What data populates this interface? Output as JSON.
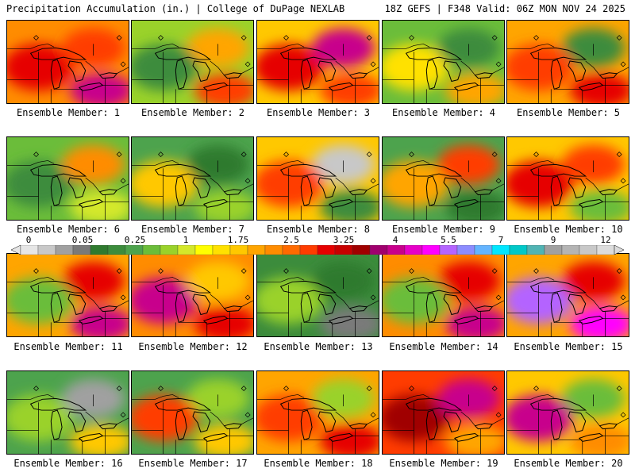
{
  "header": {
    "title": "Precipitation Accumulation (in.) | College of DuPage NEXLAB",
    "run_info": "18Z GEFS | F348 Valid: 06Z MON NOV 24 2025"
  },
  "colorbar": {
    "tick_labels": [
      "0",
      "0.05",
      "0.25",
      "1",
      "1.75",
      "2.5",
      "3.25",
      "4",
      "5.5",
      "7",
      "9",
      "12"
    ],
    "colors": [
      "#e6e6e6",
      "#c8c8c8",
      "#a0a0a0",
      "#7a7a7a",
      "#2f7a2f",
      "#3c8c3c",
      "#4da34d",
      "#6bbd3a",
      "#9ad22a",
      "#d4e82a",
      "#ffff00",
      "#ffe100",
      "#ffc800",
      "#ffa500",
      "#ff8c00",
      "#ff6a00",
      "#ff3c00",
      "#e60000",
      "#c80000",
      "#a00000",
      "#a0006e",
      "#c8008c",
      "#e600c8",
      "#ff00ff",
      "#b464ff",
      "#8c8cff",
      "#64b4ff",
      "#00e6ff",
      "#00c8c8",
      "#50b4b4",
      "#a0a0a0",
      "#b4b4b4",
      "#c8c8c8",
      "#dcdcdc"
    ]
  },
  "members": [
    {
      "label": "Ensemble Member: 1",
      "base": "#ff8c00",
      "blobs": [
        "#e60000",
        "#ff3c00",
        "#c8008c"
      ]
    },
    {
      "label": "Ensemble Member: 2",
      "base": "#9ad22a",
      "blobs": [
        "#ffa500",
        "#ff3c00",
        "#3c8c3c"
      ]
    },
    {
      "label": "Ensemble Member: 3",
      "base": "#ffc800",
      "blobs": [
        "#ff3c00",
        "#e60000",
        "#c8008c"
      ]
    },
    {
      "label": "Ensemble Member: 4",
      "base": "#6bbd3a",
      "blobs": [
        "#ffe100",
        "#3c8c3c",
        "#ffa500"
      ]
    },
    {
      "label": "Ensemble Member: 5",
      "base": "#ffa500",
      "blobs": [
        "#3c8c3c",
        "#e60000",
        "#ff3c00"
      ]
    },
    {
      "label": "Ensemble Member: 6",
      "base": "#6bbd3a",
      "blobs": [
        "#d4e82a",
        "#3c8c3c",
        "#ff8c00"
      ]
    },
    {
      "label": "Ensemble Member: 7",
      "base": "#4da34d",
      "blobs": [
        "#ffc800",
        "#2f7a2f",
        "#9ad22a"
      ]
    },
    {
      "label": "Ensemble Member: 8",
      "base": "#ffc800",
      "blobs": [
        "#c8c8c8",
        "#3c8c3c",
        "#ff3c00"
      ]
    },
    {
      "label": "Ensemble Member: 9",
      "base": "#4da34d",
      "blobs": [
        "#2f7a2f",
        "#ffa500",
        "#ff3c00"
      ]
    },
    {
      "label": "Ensemble Member: 10",
      "base": "#ffc800",
      "blobs": [
        "#e60000",
        "#ff3c00",
        "#6bbd3a"
      ]
    },
    {
      "label": "Ensemble Member: 11",
      "base": "#ffa500",
      "blobs": [
        "#e60000",
        "#c8008c",
        "#6bbd3a"
      ]
    },
    {
      "label": "Ensemble Member: 12",
      "base": "#ff8c00",
      "blobs": [
        "#e60000",
        "#c8008c",
        "#ffc800"
      ]
    },
    {
      "label": "Ensemble Member: 13",
      "base": "#3c8c3c",
      "blobs": [
        "#9ad22a",
        "#2f7a2f",
        "#7a7a7a"
      ]
    },
    {
      "label": "Ensemble Member: 14",
      "base": "#ff8c00",
      "blobs": [
        "#e60000",
        "#c8008c",
        "#6bbd3a"
      ]
    },
    {
      "label": "Ensemble Member: 15",
      "base": "#ffa500",
      "blobs": [
        "#ff00ff",
        "#b464ff",
        "#e60000"
      ]
    },
    {
      "label": "Ensemble Member: 16",
      "base": "#4da34d",
      "blobs": [
        "#9ad22a",
        "#a0a0a0",
        "#ffc800"
      ]
    },
    {
      "label": "Ensemble Member: 17",
      "base": "#4da34d",
      "blobs": [
        "#9ad22a",
        "#ffc800",
        "#ff3c00"
      ]
    },
    {
      "label": "Ensemble Member: 18",
      "base": "#ffa500",
      "blobs": [
        "#e60000",
        "#ff3c00",
        "#9ad22a"
      ]
    },
    {
      "label": "Ensemble Member: 19",
      "base": "#ff3c00",
      "blobs": [
        "#a00000",
        "#c8008c",
        "#ffa500"
      ]
    },
    {
      "label": "Ensemble Member: 20",
      "base": "#ffc800",
      "blobs": [
        "#6bbd3a",
        "#ff8c00",
        "#c8008c"
      ]
    }
  ]
}
